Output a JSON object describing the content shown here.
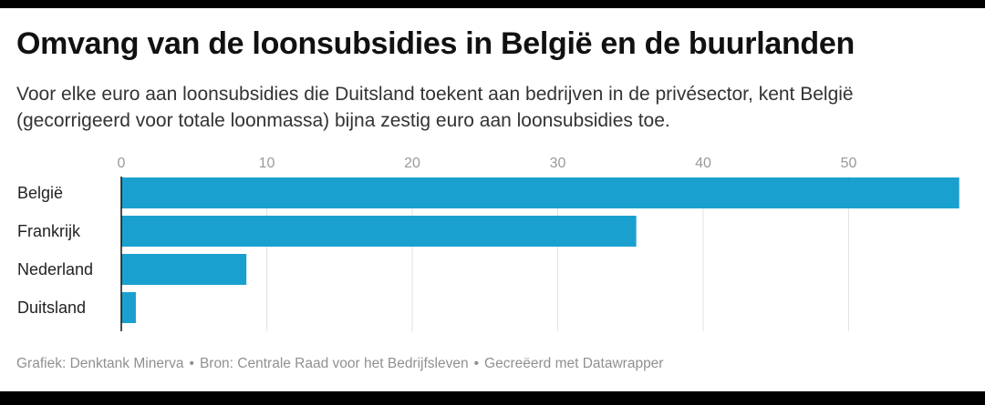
{
  "title": "Omvang van de loonsubsidies in België en de buurlanden",
  "subtitle": "Voor elke euro aan loonsubsidies die Duitsland toekent aan bedrijven in de privésector, kent België (gecorrigeerd voor totale loonmassa) bijna zestig euro aan loonsubsidies toe.",
  "footer": {
    "credit": "Grafiek: Denktank Minerva",
    "source": "Bron: Centrale Raad voor het Bedrijfsleven",
    "tool": "Gecreëerd met Datawrapper",
    "separator": "•"
  },
  "colors": {
    "bar": "#1aa0cf",
    "grid": "#e2e2e2",
    "tick": "#9a9a9a",
    "label": "#222222",
    "axis": "#111111"
  },
  "chart_data": {
    "type": "bar",
    "orientation": "horizontal",
    "categories": [
      "België",
      "Frankrijk",
      "Nederland",
      "Duitsland"
    ],
    "values": [
      57.6,
      35.4,
      8.6,
      1.0
    ],
    "xticks": [
      0,
      10,
      20,
      30,
      40,
      50
    ],
    "xlim": [
      0,
      57.6
    ],
    "grid": true,
    "axis_position": "top"
  }
}
